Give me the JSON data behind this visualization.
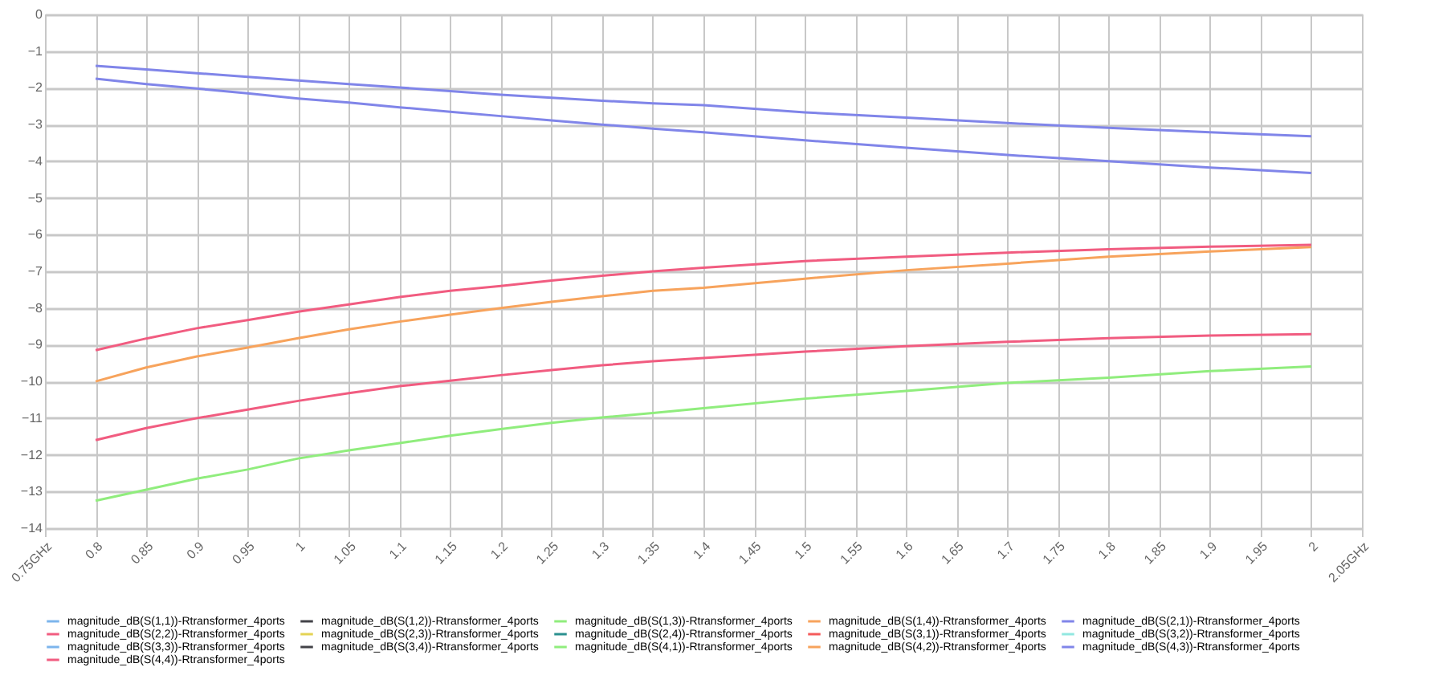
{
  "chart_data": {
    "type": "line",
    "x": [
      0.8,
      0.85,
      0.9,
      0.95,
      1.0,
      1.05,
      1.1,
      1.15,
      1.2,
      1.25,
      1.3,
      1.35,
      1.4,
      1.5,
      1.6,
      1.7,
      1.8,
      1.9,
      2.0
    ],
    "xlim": [
      0.75,
      2.05
    ],
    "xticks": [
      {
        "value": 0.75,
        "label": "0.75GHz"
      },
      0.8,
      0.85,
      0.9,
      0.95,
      1,
      1.05,
      1.1,
      1.15,
      1.2,
      1.25,
      1.3,
      1.35,
      1.4,
      1.45,
      1.5,
      1.55,
      1.6,
      1.65,
      1.7,
      1.75,
      1.8,
      1.85,
      1.9,
      1.95,
      2,
      {
        "value": 2.05,
        "label": "2.05GHz"
      }
    ],
    "ylim": [
      -14,
      0
    ],
    "yticks": [
      0,
      -1,
      -2,
      -3,
      -4,
      -5,
      -6,
      -7,
      -8,
      -9,
      -10,
      -11,
      -12,
      -13,
      -14
    ],
    "grid": true,
    "legend": "bottom",
    "line_style": "solid",
    "marker": "none",
    "series": [
      {
        "name": "magnitude_dB(S(1,1))-Rtransformer_4ports",
        "color": "#7cb5ec",
        "values": [
          null,
          null,
          null,
          null,
          null,
          null,
          null,
          null,
          null,
          null,
          null,
          null,
          null,
          null,
          null,
          null,
          null,
          null,
          null
        ]
      },
      {
        "name": "magnitude_dB(S(1,2))-Rtransformer_4ports",
        "color": "#434348",
        "values": [
          null,
          null,
          null,
          null,
          null,
          null,
          null,
          null,
          null,
          null,
          null,
          null,
          null,
          null,
          null,
          null,
          null,
          null,
          null
        ]
      },
      {
        "name": "magnitude_dB(S(1,3))-Rtransformer_4ports",
        "color": "#90ed7d",
        "values": [
          -13.25,
          -12.95,
          -12.65,
          -12.4,
          -12.1,
          -11.88,
          -11.68,
          -11.48,
          -11.3,
          -11.13,
          -10.98,
          -10.86,
          -10.73,
          -10.47,
          -10.26,
          -10.04,
          -9.9,
          -9.72,
          -9.59
        ]
      },
      {
        "name": "magnitude_dB(S(1,4))-Rtransformer_4ports",
        "color": "#f7a35c",
        "values": [
          -10.0,
          -9.62,
          -9.32,
          -9.08,
          -8.82,
          -8.58,
          -8.37,
          -8.18,
          -8.0,
          -7.83,
          -7.68,
          -7.53,
          -7.45,
          -7.2,
          -6.97,
          -6.79,
          -6.6,
          -6.46,
          -6.34
        ]
      },
      {
        "name": "magnitude_dB(S(2,1))-Rtransformer_4ports",
        "color": "#8085e9",
        "values": [
          -1.4,
          -1.5,
          -1.6,
          -1.7,
          -1.8,
          -1.9,
          -1.99,
          -2.09,
          -2.19,
          -2.27,
          -2.35,
          -2.42,
          -2.47,
          -2.67,
          -2.81,
          -2.96,
          -3.09,
          -3.21,
          -3.32
        ]
      },
      {
        "name": "magnitude_dB(S(2,2))-Rtransformer_4ports",
        "color": "#f15c80",
        "values": [
          -9.15,
          -8.83,
          -8.55,
          -8.33,
          -8.1,
          -7.9,
          -7.7,
          -7.53,
          -7.4,
          -7.25,
          -7.12,
          -7.0,
          -6.9,
          -6.72,
          -6.6,
          -6.49,
          -6.4,
          -6.33,
          -6.28
        ]
      },
      {
        "name": "magnitude_dB(S(2,3))-Rtransformer_4ports",
        "color": "#e4d354",
        "values": [
          null,
          null,
          null,
          null,
          null,
          null,
          null,
          null,
          null,
          null,
          null,
          null,
          null,
          null,
          null,
          null,
          null,
          null,
          null
        ]
      },
      {
        "name": "magnitude_dB(S(2,4))-Rtransformer_4ports",
        "color": "#2b908f",
        "values": [
          null,
          null,
          null,
          null,
          null,
          null,
          null,
          null,
          null,
          null,
          null,
          null,
          null,
          null,
          null,
          null,
          null,
          null,
          null
        ]
      },
      {
        "name": "magnitude_dB(S(3,1))-Rtransformer_4ports",
        "color": "#f45b5b",
        "values": [
          null,
          null,
          null,
          null,
          null,
          null,
          null,
          null,
          null,
          null,
          null,
          null,
          null,
          null,
          null,
          null,
          null,
          null,
          null
        ]
      },
      {
        "name": "magnitude_dB(S(3,2))-Rtransformer_4ports",
        "color": "#91e8e1",
        "values": [
          null,
          null,
          null,
          null,
          null,
          null,
          null,
          null,
          null,
          null,
          null,
          null,
          null,
          null,
          null,
          null,
          null,
          null,
          null
        ]
      },
      {
        "name": "magnitude_dB(S(3,3))-Rtransformer_4ports",
        "color": "#7cb5ec",
        "values": [
          null,
          null,
          null,
          null,
          null,
          null,
          null,
          null,
          null,
          null,
          null,
          null,
          null,
          null,
          null,
          null,
          null,
          null,
          null
        ]
      },
      {
        "name": "magnitude_dB(S(3,4))-Rtransformer_4ports",
        "color": "#434348",
        "values": [
          null,
          null,
          null,
          null,
          null,
          null,
          null,
          null,
          null,
          null,
          null,
          null,
          null,
          null,
          null,
          null,
          null,
          null,
          null
        ]
      },
      {
        "name": "magnitude_dB(S(4,1))-Rtransformer_4ports",
        "color": "#90ed7d",
        "values": [
          null,
          null,
          null,
          null,
          null,
          null,
          null,
          null,
          null,
          null,
          null,
          null,
          null,
          null,
          null,
          null,
          null,
          null,
          null
        ]
      },
      {
        "name": "magnitude_dB(S(4,2))-Rtransformer_4ports",
        "color": "#f7a35c",
        "values": [
          null,
          null,
          null,
          null,
          null,
          null,
          null,
          null,
          null,
          null,
          null,
          null,
          null,
          null,
          null,
          null,
          null,
          null,
          null
        ]
      },
      {
        "name": "magnitude_dB(S(4,3))-Rtransformer_4ports",
        "color": "#8085e9",
        "values": [
          -1.75,
          -1.9,
          -2.02,
          -2.15,
          -2.29,
          -2.4,
          -2.53,
          -2.65,
          -2.77,
          -2.89,
          -3.0,
          -3.11,
          -3.21,
          -3.43,
          -3.63,
          -3.83,
          -4.0,
          -4.17,
          -4.32
        ]
      },
      {
        "name": "magnitude_dB(S(4,4))-Rtransformer_4ports",
        "color": "#f15c80",
        "values": [
          -11.6,
          -11.27,
          -11.0,
          -10.77,
          -10.53,
          -10.32,
          -10.13,
          -9.98,
          -9.83,
          -9.69,
          -9.56,
          -9.45,
          -9.36,
          -9.19,
          -9.04,
          -8.92,
          -8.82,
          -8.75,
          -8.71
        ]
      }
    ]
  }
}
